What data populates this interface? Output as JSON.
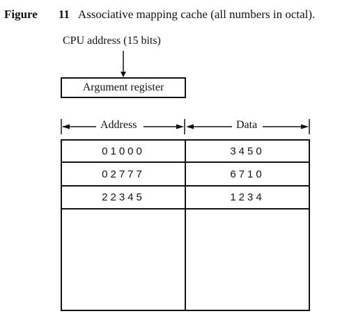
{
  "caption": {
    "figure_word": "Figure",
    "figure_number": "11",
    "title": "Associative mapping cache (all numbers in octal)."
  },
  "cpu_address_label": "CPU address (15 bits)",
  "argument_register_label": "Argument register",
  "table": {
    "headers": {
      "address": "Address",
      "data": "Data"
    },
    "rows": [
      {
        "address": "01000",
        "data": "3450"
      },
      {
        "address": "02777",
        "data": "6710"
      },
      {
        "address": "22345",
        "data": "1234"
      }
    ]
  },
  "colors": {
    "ink": "#111111",
    "background": "#ffffff"
  }
}
